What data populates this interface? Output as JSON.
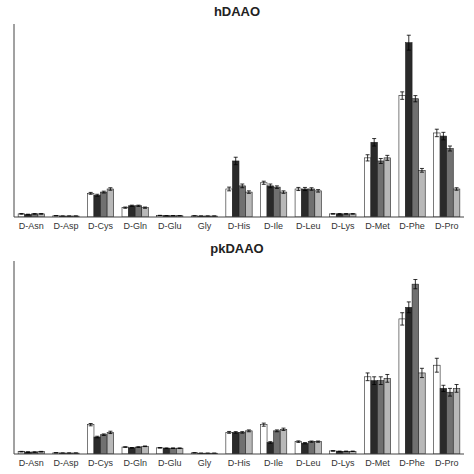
{
  "chart_data": [
    {
      "type": "bar",
      "title": "hDAAO",
      "categories": [
        "D-Asn",
        "D-Asp",
        "D-Cys",
        "D-Gln",
        "D-Glu",
        "Gly",
        "D-His",
        "D-Ile",
        "D-Leu",
        "D-Lys",
        "D-Met",
        "D-Phe",
        "D-Pro"
      ],
      "series": [
        {
          "color": "white",
          "values": [
            0.5,
            0.2,
            3.8,
            1.5,
            0.25,
            0.18,
            4.5,
            5.5,
            4.5,
            0.5,
            9.5,
            19.5,
            13.5
          ],
          "errors": [
            0.05,
            0.02,
            0.15,
            0.1,
            0.02,
            0.02,
            0.3,
            0.25,
            0.25,
            0.04,
            0.5,
            0.6,
            0.6
          ]
        },
        {
          "color": "#2a2a2a",
          "values": [
            0.4,
            0.15,
            3.5,
            1.8,
            0.2,
            0.15,
            9.0,
            5.0,
            4.5,
            0.5,
            12.0,
            28.0,
            13.0
          ],
          "errors": [
            0.05,
            0.02,
            0.15,
            0.1,
            0.02,
            0.02,
            0.6,
            0.3,
            0.25,
            0.04,
            0.6,
            1.2,
            0.6
          ]
        },
        {
          "color": "#707070",
          "values": [
            0.5,
            0.15,
            4.0,
            1.8,
            0.2,
            0.15,
            5.0,
            4.8,
            4.5,
            0.5,
            9.0,
            19.0,
            11.0
          ],
          "errors": [
            0.05,
            0.02,
            0.15,
            0.1,
            0.02,
            0.02,
            0.3,
            0.2,
            0.2,
            0.04,
            0.4,
            0.5,
            0.4
          ]
        },
        {
          "color": "#b8b8b8",
          "values": [
            0.5,
            0.15,
            4.5,
            1.5,
            0.2,
            0.15,
            4.0,
            4.0,
            4.2,
            0.5,
            9.5,
            7.5,
            4.5
          ],
          "errors": [
            0.05,
            0.02,
            0.2,
            0.1,
            0.02,
            0.02,
            0.2,
            0.2,
            0.2,
            0.04,
            0.4,
            0.3,
            0.2
          ]
        }
      ],
      "ylim": [
        0,
        31
      ],
      "yticks": [],
      "grid": false,
      "tick_labels": "x"
    },
    {
      "type": "bar",
      "title": "pkDAAO",
      "categories": [
        "D-Asn",
        "D-Asp",
        "D-Cys",
        "D-Gln",
        "D-Glu",
        "Gly",
        "D-His",
        "D-Ile",
        "D-Leu",
        "D-Lys",
        "D-Met",
        "D-Phe",
        "D-Pro"
      ],
      "series": [
        {
          "color": "white",
          "values": [
            0.3,
            0.15,
            3.8,
            0.9,
            0.8,
            0.15,
            2.8,
            3.8,
            1.6,
            0.4,
            10.0,
            17.5,
            11.5
          ],
          "errors": [
            0.04,
            0.02,
            0.15,
            0.04,
            0.04,
            0.02,
            0.12,
            0.2,
            0.1,
            0.04,
            0.5,
            0.8,
            0.9
          ]
        },
        {
          "color": "#2a2a2a",
          "values": [
            0.25,
            0.12,
            2.2,
            0.8,
            0.75,
            0.1,
            2.8,
            1.5,
            1.4,
            0.35,
            9.5,
            19.0,
            8.5
          ],
          "errors": [
            0.04,
            0.02,
            0.1,
            0.04,
            0.04,
            0.02,
            0.1,
            0.1,
            0.08,
            0.03,
            0.5,
            0.7,
            0.4
          ]
        },
        {
          "color": "#707070",
          "values": [
            0.25,
            0.12,
            2.5,
            0.9,
            0.75,
            0.1,
            2.8,
            3.0,
            1.6,
            0.35,
            9.5,
            22.0,
            8.0
          ],
          "errors": [
            0.04,
            0.02,
            0.1,
            0.04,
            0.04,
            0.02,
            0.1,
            0.12,
            0.08,
            0.03,
            0.5,
            0.6,
            0.5
          ]
        },
        {
          "color": "#b8b8b8",
          "values": [
            0.3,
            0.12,
            2.8,
            1.0,
            0.75,
            0.1,
            3.0,
            3.2,
            1.6,
            0.35,
            9.8,
            10.5,
            8.5
          ],
          "errors": [
            0.04,
            0.02,
            0.15,
            0.04,
            0.04,
            0.02,
            0.12,
            0.15,
            0.08,
            0.03,
            0.5,
            0.6,
            0.5
          ]
        }
      ],
      "ylim": [
        0,
        25
      ],
      "yticks": [],
      "grid": false,
      "tick_labels": "x"
    }
  ]
}
